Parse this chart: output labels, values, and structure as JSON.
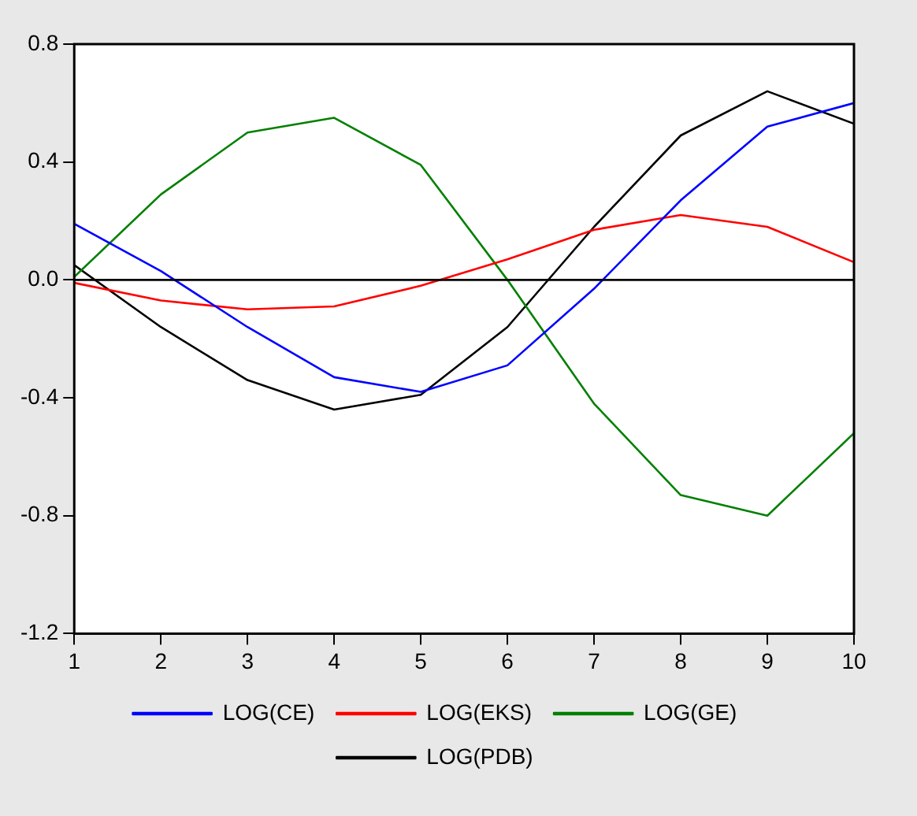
{
  "chart_data": {
    "type": "line",
    "x": [
      1,
      2,
      3,
      4,
      5,
      6,
      7,
      8,
      9,
      10
    ],
    "xlim": [
      1,
      10
    ],
    "xticks": [
      1,
      2,
      3,
      4,
      5,
      6,
      7,
      8,
      9,
      10
    ],
    "ylim": [
      -1.2,
      0.8
    ],
    "yticks": [
      {
        "value": -1.2,
        "label": "-1.2"
      },
      {
        "value": -0.8,
        "label": "-0.8"
      },
      {
        "value": -0.4,
        "label": "-0.4"
      },
      {
        "value": 0,
        "label": "0.0"
      },
      {
        "value": 0.4,
        "label": "0.4"
      },
      {
        "value": 0.8,
        "label": "0.8"
      }
    ],
    "series": [
      {
        "name": "LOG(CE)",
        "color": "#0000ff",
        "values": [
          0.19,
          0.03,
          -0.16,
          -0.33,
          -0.38,
          -0.29,
          -0.03,
          0.27,
          0.52,
          0.6
        ]
      },
      {
        "name": "LOG(EKS)",
        "color": "#ff0000",
        "values": [
          -0.01,
          -0.07,
          -0.1,
          -0.09,
          -0.02,
          0.07,
          0.17,
          0.22,
          0.18,
          0.06
        ]
      },
      {
        "name": "LOG(GE)",
        "color": "#008000",
        "values": [
          0.01,
          0.29,
          0.5,
          0.55,
          0.39,
          0.0,
          -0.42,
          -0.73,
          -0.8,
          -0.52
        ]
      },
      {
        "name": "LOG(PDB)",
        "color": "#000000",
        "values": [
          0.05,
          -0.16,
          -0.34,
          -0.44,
          -0.39,
          -0.16,
          0.18,
          0.49,
          0.64,
          0.53
        ]
      }
    ],
    "ref_lines": [
      {
        "axis": "y",
        "value": 0,
        "color": "#000000"
      }
    ],
    "grid": false,
    "legend": "bottom",
    "marker": "none",
    "line_style": "solid"
  }
}
